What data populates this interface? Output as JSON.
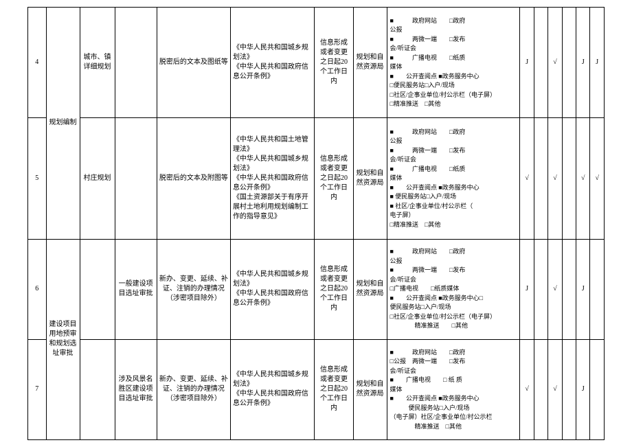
{
  "rows": [
    {
      "num": "4",
      "cat": "规划编制",
      "sub": "城市、镇详细规划",
      "item": "",
      "content": "脱密后的文本及图纸等",
      "basis": "《中华人民共和国城乡规划法》\n《中华人民共和国政府信息公开条例》",
      "time": "信息形成或者变更之日起20个工作日内",
      "org": "规划和自然资源局",
      "channels": "■　　　政府网站　　□政府\n公报\n■　　　两微一端　　□发布\n会/听证会\n■　　　广播电视　　□纸质\n媒体\n■　　公开查阅点 ■政务服务中心\n□便民服务站□入户/现场\n□社区/企事业单位/村公示栏（电子屏）\n□精准推送　□其他",
      "s1": "J",
      "s2": "",
      "s3": "√",
      "s4": "",
      "s5": "J",
      "s6": "J"
    },
    {
      "num": "5",
      "cat": "",
      "sub": "村庄规划",
      "item": "",
      "content": "脱密后的文本及附图等",
      "basis": "《中华人民共和国土地管理法》\n《中华人民共和国城乡规划法》\n《中华人民共和国政府信息公开条例》\n《国土资源部关于有序开展村土地利用规划编制工作的指导意见》",
      "time": "信息形成或者变更之日起20个工作日内",
      "org": "规划和自然资源局",
      "channels": "■　　　政府网站　　□政府\n公报\n■　　　两微一端　　□发布\n会/听证会\n■　　　广播电视　　□纸质\n媒体\n■　　公开查阅点 ■政务服务中心\n■ 便民服务站□入户/现场\n■ 社区/企事业单位/村公示栏（\n电子屏）\n□精准推送　□其他",
      "s1": "√",
      "s2": "",
      "s3": "√",
      "s4": "",
      "s5": "√",
      "s6": "√"
    },
    {
      "num": "6",
      "cat": "建设项目用地预审和规划选址审批",
      "sub": "",
      "item": "一般建设项目选址审批",
      "content": "新办、变更、延续、补证、注销的办理情况（涉密项目除外）",
      "basis": "《中华人民共和国城乡规划法》\n《中华人民共和国政府信息公开条例》",
      "time": "信息形成或者变更之日起20个工作日内",
      "org": "规划和自然资源局",
      "channels": "■　　　政府网站　　□政府\n公报\n■　　　两微一端　　□发布\n会/听证会\n□广播电视　　□纸质媒体\n■　　公开查阅点 ■政务服务中心□\n便民服务站□入户/现场\n□社区/企事业单位/村公示栏（电子屏）\n　　　　精准推送　　□其他",
      "s1": "J",
      "s2": "",
      "s3": "√",
      "s4": "",
      "s5": "J",
      "s6": ""
    },
    {
      "num": "7",
      "cat": "",
      "sub": "",
      "item": "涉及风景名胜区建设项目选址审批",
      "content": "新办、变更、延续、补证、注销的办理情况（涉密项目除外）",
      "basis": "《中华人民共和国城乡规划法》\n《中华人民共和国政府信息公开条例》",
      "time": "信息形成或者变更之日起20个工作日内",
      "org": "规划和自然资源局",
      "channels": "■　　　政府网站　　□政府\n□公报　两微一端　　□发布\n会/听证会\n■　　广播电视　　□ 纸 质\n媒体\n■　　公开查阅点 ■政务服务中心\n　　　便民服务站□入户/现场\n（电子屏）社区/企事业单位/村公示栏\n　　　　精准推送　□其他",
      "s1": "√",
      "s2": "",
      "s3": "√",
      "s4": "",
      "s5": "J",
      "s6": ""
    }
  ]
}
